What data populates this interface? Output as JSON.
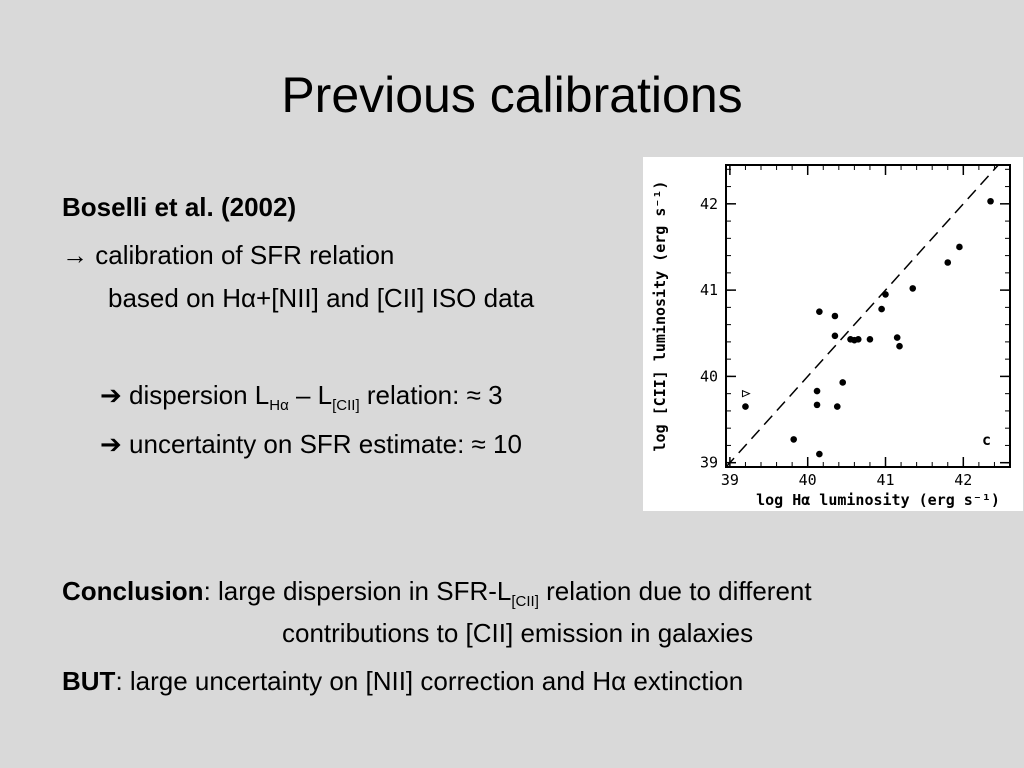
{
  "title": "Previous calibrations",
  "reference": "Boselli et al. (2002)",
  "calibration": {
    "arrow": "→",
    "line1": "calibration of SFR relation",
    "line2": "based on Hα+[NII] and [CII] ISO data"
  },
  "findings": {
    "arrow": "➔",
    "dispersion": {
      "pre": "dispersion L",
      "sub1": "Hα",
      "mid": " – L",
      "sub2": "[CII]",
      "post": " relation: ≈ 3"
    },
    "uncertainty": "uncertainty on SFR estimate: ≈ 10"
  },
  "conclusion": {
    "label": "Conclusion",
    "pre": ": large dispersion in SFR-L",
    "sub": "[CII]",
    "post": " relation due to different",
    "line2": "contributions to [CII] emission in galaxies"
  },
  "but": {
    "label": "BUT",
    "text": ": large uncertainty on [NII] correction and Hα extinction"
  },
  "chart_data": {
    "type": "scatter",
    "xlabel": "log Hα luminosity (erg s⁻¹)",
    "ylabel": "log [CII] luminosity (erg s⁻¹)",
    "xlim": [
      38.95,
      42.6
    ],
    "ylim": [
      38.95,
      42.45
    ],
    "xticks": [
      39,
      40,
      41,
      42
    ],
    "yticks": [
      39,
      40,
      41,
      42
    ],
    "panel_label": "c",
    "points": [
      {
        "x": 40.15,
        "y": 40.75
      },
      {
        "x": 40.35,
        "y": 40.7
      },
      {
        "x": 40.35,
        "y": 40.47
      },
      {
        "x": 40.55,
        "y": 40.43
      },
      {
        "x": 40.6,
        "y": 40.42
      },
      {
        "x": 40.65,
        "y": 40.43
      },
      {
        "x": 40.8,
        "y": 40.43
      },
      {
        "x": 40.95,
        "y": 40.78
      },
      {
        "x": 41.0,
        "y": 40.95
      },
      {
        "x": 41.15,
        "y": 40.45
      },
      {
        "x": 41.18,
        "y": 40.35
      },
      {
        "x": 41.35,
        "y": 41.02
      },
      {
        "x": 41.8,
        "y": 41.32
      },
      {
        "x": 41.95,
        "y": 41.5
      },
      {
        "x": 42.35,
        "y": 42.03
      },
      {
        "x": 40.12,
        "y": 39.83
      },
      {
        "x": 40.12,
        "y": 39.67
      },
      {
        "x": 40.45,
        "y": 39.93
      },
      {
        "x": 40.38,
        "y": 39.65
      },
      {
        "x": 39.82,
        "y": 39.27
      },
      {
        "x": 40.15,
        "y": 39.1
      },
      {
        "x": 39.2,
        "y": 39.65
      }
    ],
    "limit_points": [
      {
        "x": 39.2,
        "y": 39.8
      }
    ],
    "reference_line": {
      "slope": 1,
      "intercept": 0
    }
  }
}
